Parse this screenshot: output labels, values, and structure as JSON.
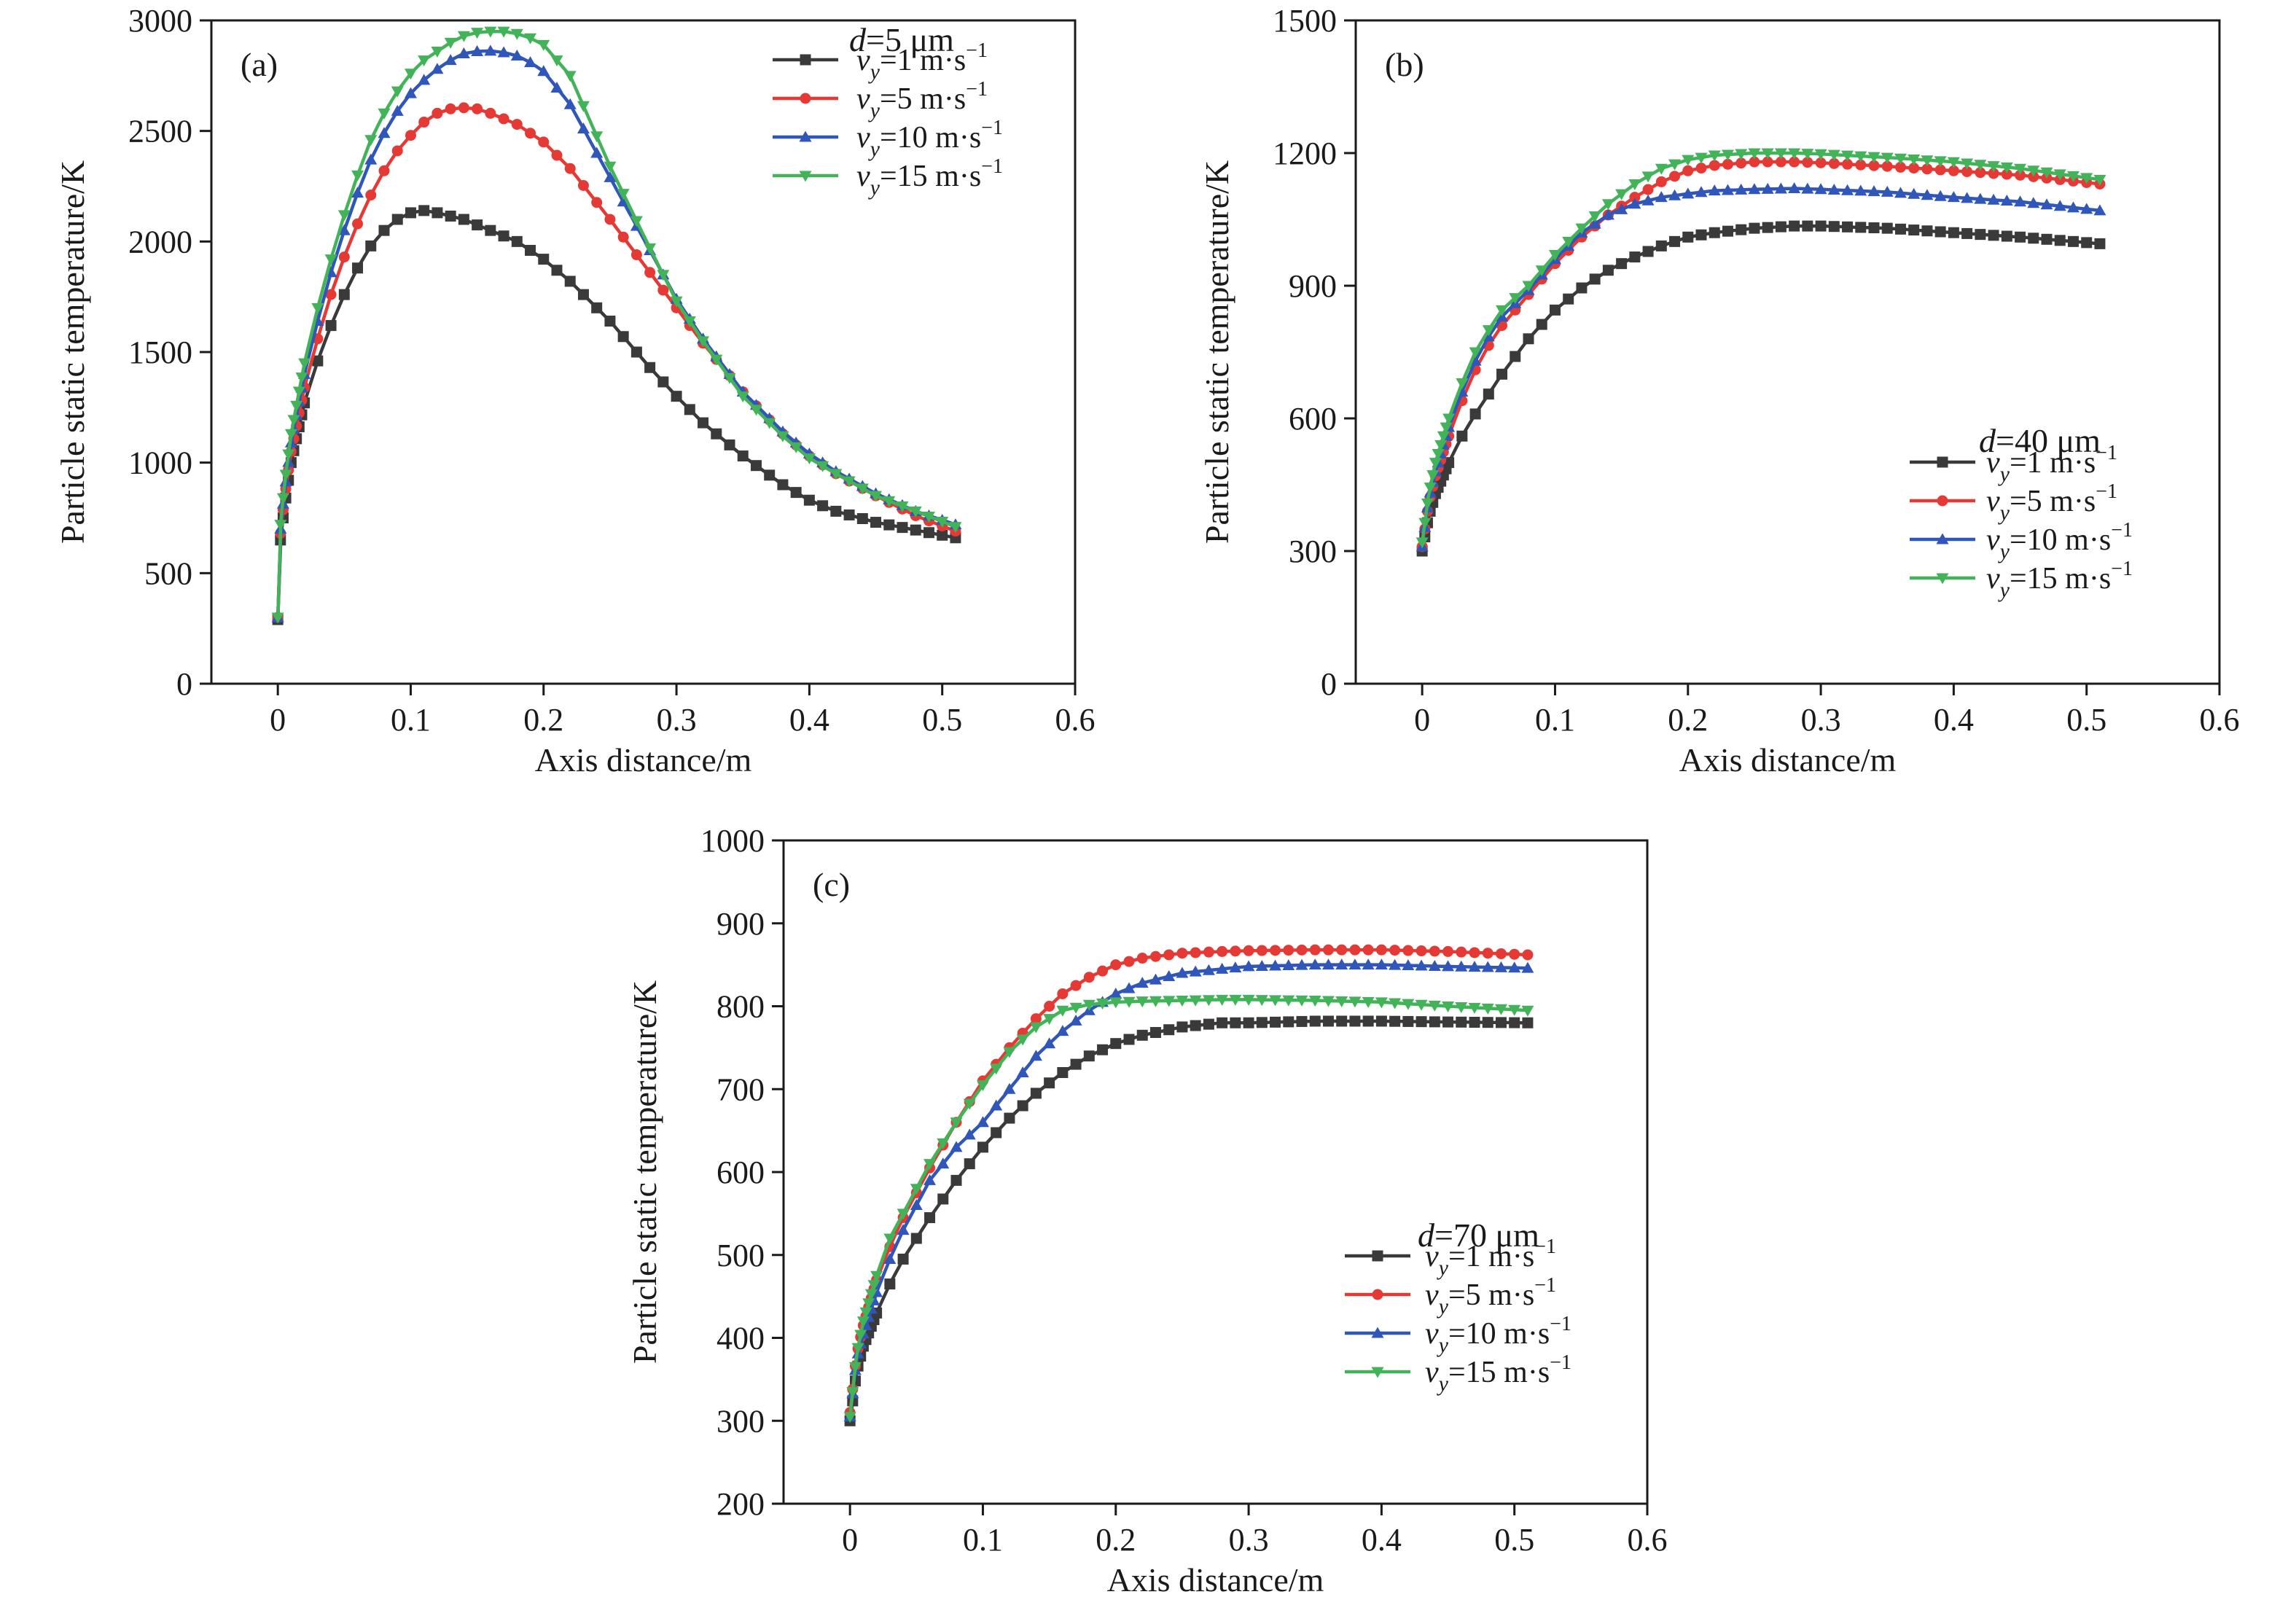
{
  "chart_data": [
    {
      "type": "line",
      "panel_label": "(a)",
      "xlabel": "Axis distance/m",
      "ylabel": "Particle static temperature/K",
      "xlim": [
        -0.05,
        0.6
      ],
      "ylim": [
        0,
        3000
      ],
      "xticks": [
        0,
        0.1,
        0.2,
        0.3,
        0.4,
        0.5,
        0.6
      ],
      "xtick_labels": [
        "0",
        "0.1",
        "0.2",
        "0.3",
        "0.4",
        "0.5",
        "0.6"
      ],
      "yticks": [
        0,
        500,
        1000,
        1500,
        2000,
        2500,
        3000
      ],
      "ytick_labels": [
        "0",
        "500",
        "1000",
        "1500",
        "2000",
        "2500",
        "3000"
      ],
      "grid": false,
      "legend_placement": "top-right",
      "legend_title": {
        "italic": "d",
        "text": "=5 μm"
      },
      "series": [
        {
          "name": "vy=1 m·s−1",
          "legend_value": "=1 m·s",
          "color": "#3a3a3a",
          "marker": "square",
          "x": [
            0,
            0.002,
            0.005,
            0.01,
            0.02,
            0.03,
            0.04,
            0.05,
            0.06,
            0.07,
            0.08,
            0.09,
            0.1,
            0.11,
            0.12,
            0.14,
            0.16,
            0.18,
            0.2,
            0.22,
            0.25,
            0.28,
            0.3,
            0.32,
            0.35,
            0.38,
            0.4,
            0.42,
            0.45,
            0.48,
            0.51
          ],
          "y": [
            290,
            650,
            800,
            1000,
            1270,
            1460,
            1620,
            1760,
            1880,
            1980,
            2050,
            2100,
            2130,
            2140,
            2130,
            2100,
            2050,
            2000,
            1920,
            1820,
            1640,
            1430,
            1300,
            1180,
            1030,
            900,
            830,
            780,
            730,
            695,
            660
          ]
        },
        {
          "name": "vy=5 m·s−1",
          "legend_value": "=5 m·s",
          "color": "#e53935",
          "marker": "circle",
          "x": [
            0,
            0.002,
            0.005,
            0.01,
            0.02,
            0.03,
            0.04,
            0.05,
            0.06,
            0.07,
            0.08,
            0.09,
            0.1,
            0.11,
            0.12,
            0.13,
            0.14,
            0.15,
            0.16,
            0.18,
            0.2,
            0.22,
            0.25,
            0.28,
            0.3,
            0.32,
            0.35,
            0.38,
            0.4,
            0.42,
            0.45,
            0.48,
            0.51
          ],
          "y": [
            300,
            680,
            840,
            1050,
            1340,
            1560,
            1760,
            1930,
            2080,
            2210,
            2320,
            2410,
            2480,
            2540,
            2580,
            2600,
            2605,
            2600,
            2580,
            2530,
            2450,
            2330,
            2100,
            1860,
            1700,
            1540,
            1320,
            1130,
            1030,
            950,
            850,
            760,
            690
          ]
        },
        {
          "name": "vy=10 m·s−1",
          "legend_value": "=10 m·s",
          "color": "#2f56b8",
          "marker": "triangle-up",
          "x": [
            0,
            0.002,
            0.005,
            0.01,
            0.02,
            0.03,
            0.04,
            0.05,
            0.06,
            0.07,
            0.08,
            0.09,
            0.1,
            0.11,
            0.12,
            0.13,
            0.14,
            0.15,
            0.16,
            0.17,
            0.18,
            0.19,
            0.2,
            0.22,
            0.25,
            0.28,
            0.3,
            0.32,
            0.35,
            0.38,
            0.4,
            0.42,
            0.45,
            0.48,
            0.51
          ],
          "y": [
            300,
            700,
            870,
            1090,
            1400,
            1640,
            1860,
            2050,
            2220,
            2370,
            2490,
            2590,
            2670,
            2730,
            2780,
            2820,
            2850,
            2860,
            2862,
            2855,
            2840,
            2810,
            2770,
            2620,
            2290,
            1960,
            1740,
            1560,
            1320,
            1140,
            1040,
            960,
            860,
            780,
            720
          ]
        },
        {
          "name": "vy=15 m·s−1",
          "legend_value": "=15 m·s",
          "color": "#43b35a",
          "marker": "triangle-down",
          "x": [
            0,
            0.002,
            0.005,
            0.01,
            0.02,
            0.03,
            0.04,
            0.05,
            0.06,
            0.07,
            0.08,
            0.09,
            0.1,
            0.11,
            0.12,
            0.13,
            0.14,
            0.15,
            0.16,
            0.17,
            0.18,
            0.19,
            0.2,
            0.22,
            0.25,
            0.28,
            0.3,
            0.32,
            0.35,
            0.38,
            0.4,
            0.42,
            0.45,
            0.48,
            0.51
          ],
          "y": [
            300,
            720,
            900,
            1130,
            1450,
            1700,
            1920,
            2120,
            2300,
            2460,
            2580,
            2680,
            2760,
            2820,
            2860,
            2900,
            2930,
            2945,
            2950,
            2950,
            2940,
            2920,
            2890,
            2750,
            2340,
            1970,
            1730,
            1550,
            1300,
            1120,
            1020,
            950,
            850,
            780,
            710
          ]
        }
      ]
    },
    {
      "type": "line",
      "panel_label": "(b)",
      "xlabel": "Axis distance/m",
      "ylabel": "Particle static temperature/K",
      "xlim": [
        -0.05,
        0.6
      ],
      "ylim": [
        0,
        1500
      ],
      "xticks": [
        0,
        0.1,
        0.2,
        0.3,
        0.4,
        0.5,
        0.6
      ],
      "xtick_labels": [
        "0",
        "0.1",
        "0.2",
        "0.3",
        "0.4",
        "0.5",
        "0.6"
      ],
      "yticks": [
        0,
        300,
        600,
        900,
        1200,
        1500
      ],
      "ytick_labels": [
        "0",
        "300",
        "600",
        "900",
        "1200",
        "1500"
      ],
      "grid": false,
      "legend_placement": "bottom-right",
      "legend_title": {
        "italic": "d",
        "text": "=40 μm"
      },
      "series": [
        {
          "name": "vy=1 m·s−1",
          "legend_value": "=1 m·s",
          "color": "#3a3a3a",
          "marker": "square",
          "x": [
            0,
            0.005,
            0.01,
            0.02,
            0.03,
            0.04,
            0.05,
            0.06,
            0.08,
            0.1,
            0.12,
            0.14,
            0.16,
            0.18,
            0.2,
            0.22,
            0.25,
            0.28,
            0.3,
            0.35,
            0.4,
            0.45,
            0.51
          ],
          "y": [
            300,
            380,
            430,
            500,
            560,
            610,
            655,
            700,
            780,
            845,
            895,
            935,
            965,
            990,
            1010,
            1020,
            1030,
            1035,
            1035,
            1030,
            1020,
            1010,
            995
          ]
        },
        {
          "name": "vy=5 m·s−1",
          "legend_value": "=5 m·s",
          "color": "#e53935",
          "marker": "circle",
          "x": [
            0,
            0.005,
            0.01,
            0.02,
            0.03,
            0.04,
            0.05,
            0.06,
            0.08,
            0.1,
            0.12,
            0.14,
            0.16,
            0.18,
            0.2,
            0.22,
            0.25,
            0.28,
            0.3,
            0.35,
            0.4,
            0.45,
            0.51
          ],
          "y": [
            310,
            410,
            470,
            560,
            640,
            710,
            765,
            810,
            880,
            950,
            1010,
            1060,
            1100,
            1135,
            1160,
            1172,
            1180,
            1180,
            1178,
            1170,
            1160,
            1150,
            1130
          ]
        },
        {
          "name": "vy=10 m·s−1",
          "legend_value": "=10 m·s",
          "color": "#2f56b8",
          "marker": "triangle-up",
          "x": [
            0,
            0.005,
            0.01,
            0.02,
            0.03,
            0.04,
            0.05,
            0.06,
            0.08,
            0.1,
            0.12,
            0.14,
            0.16,
            0.18,
            0.2,
            0.22,
            0.25,
            0.28,
            0.3,
            0.35,
            0.4,
            0.45,
            0.51
          ],
          "y": [
            310,
            420,
            480,
            580,
            660,
            730,
            785,
            830,
            890,
            960,
            1020,
            1060,
            1085,
            1100,
            1108,
            1115,
            1118,
            1120,
            1118,
            1112,
            1100,
            1090,
            1070
          ]
        },
        {
          "name": "vy=15 m·s−1",
          "legend_value": "=15 m·s",
          "color": "#43b35a",
          "marker": "triangle-down",
          "x": [
            0,
            0.005,
            0.01,
            0.02,
            0.03,
            0.04,
            0.05,
            0.06,
            0.08,
            0.1,
            0.12,
            0.14,
            0.16,
            0.18,
            0.2,
            0.22,
            0.25,
            0.28,
            0.3,
            0.35,
            0.4,
            0.45,
            0.51
          ],
          "y": [
            320,
            430,
            500,
            600,
            680,
            750,
            800,
            845,
            900,
            970,
            1030,
            1085,
            1130,
            1165,
            1185,
            1195,
            1200,
            1200,
            1198,
            1190,
            1180,
            1165,
            1140
          ]
        }
      ]
    },
    {
      "type": "line",
      "panel_label": "(c)",
      "xlabel": "Axis distance/m",
      "ylabel": "Particle static temperature/K",
      "xlim": [
        -0.05,
        0.6
      ],
      "ylim": [
        200,
        1000
      ],
      "xticks": [
        0,
        0.1,
        0.2,
        0.3,
        0.4,
        0.5,
        0.6
      ],
      "xtick_labels": [
        "0",
        "0.1",
        "0.2",
        "0.3",
        "0.4",
        "0.5",
        "0.6"
      ],
      "yticks": [
        200,
        300,
        400,
        500,
        600,
        700,
        800,
        900,
        1000
      ],
      "ytick_labels": [
        "200",
        "300",
        "400",
        "500",
        "600",
        "700",
        "800",
        "900",
        "1000"
      ],
      "grid": false,
      "legend_placement": "bottom-right",
      "legend_title": {
        "italic": "d",
        "text": "=70 μm"
      },
      "series": [
        {
          "name": "vy=1 m·s−1",
          "legend_value": "=1 m·s",
          "color": "#3a3a3a",
          "marker": "square",
          "x": [
            0,
            0.005,
            0.01,
            0.02,
            0.03,
            0.04,
            0.05,
            0.06,
            0.08,
            0.1,
            0.12,
            0.14,
            0.16,
            0.18,
            0.2,
            0.22,
            0.25,
            0.28,
            0.3,
            0.35,
            0.4,
            0.45,
            0.51
          ],
          "y": [
            300,
            360,
            390,
            430,
            465,
            495,
            520,
            545,
            590,
            630,
            665,
            695,
            720,
            740,
            755,
            765,
            775,
            780,
            780,
            782,
            782,
            781,
            780
          ]
        },
        {
          "name": "vy=5 m·s−1",
          "legend_value": "=5 m·s",
          "color": "#e53935",
          "marker": "circle",
          "x": [
            0,
            0.005,
            0.01,
            0.02,
            0.03,
            0.04,
            0.05,
            0.06,
            0.08,
            0.1,
            0.12,
            0.14,
            0.16,
            0.18,
            0.2,
            0.22,
            0.25,
            0.28,
            0.3,
            0.35,
            0.4,
            0.45,
            0.51
          ],
          "y": [
            310,
            380,
            415,
            470,
            510,
            545,
            575,
            605,
            660,
            710,
            750,
            785,
            815,
            835,
            850,
            858,
            864,
            866,
            867,
            868,
            868,
            866,
            862
          ]
        },
        {
          "name": "vy=10 m·s−1",
          "legend_value": "=10 m·s",
          "color": "#2f56b8",
          "marker": "triangle-up",
          "x": [
            0,
            0.005,
            0.01,
            0.02,
            0.03,
            0.04,
            0.05,
            0.06,
            0.08,
            0.1,
            0.12,
            0.14,
            0.16,
            0.18,
            0.2,
            0.22,
            0.25,
            0.28,
            0.3,
            0.35,
            0.4,
            0.45,
            0.51
          ],
          "y": [
            305,
            375,
            405,
            455,
            495,
            530,
            560,
            590,
            630,
            660,
            700,
            740,
            770,
            795,
            815,
            828,
            840,
            845,
            848,
            850,
            850,
            848,
            846
          ]
        },
        {
          "name": "vy=15 m·s−1",
          "legend_value": "=15 m·s",
          "color": "#43b35a",
          "marker": "triangle-down",
          "x": [
            0,
            0.005,
            0.01,
            0.02,
            0.03,
            0.04,
            0.05,
            0.06,
            0.08,
            0.1,
            0.12,
            0.14,
            0.16,
            0.18,
            0.2,
            0.22,
            0.25,
            0.28,
            0.3,
            0.35,
            0.4,
            0.45,
            0.51
          ],
          "y": [
            305,
            380,
            420,
            475,
            520,
            550,
            580,
            610,
            660,
            705,
            745,
            775,
            795,
            802,
            805,
            806,
            807,
            808,
            808,
            807,
            805,
            800,
            795
          ]
        }
      ]
    }
  ]
}
